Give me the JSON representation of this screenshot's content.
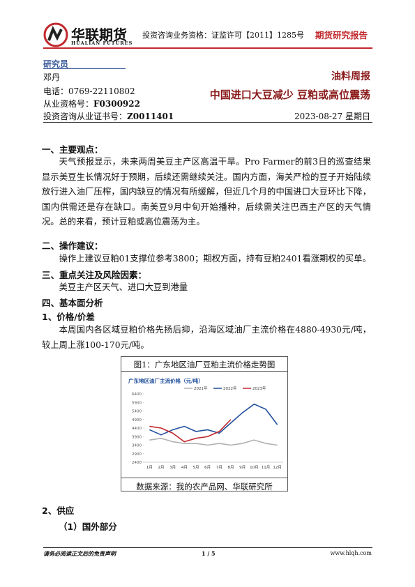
{
  "header": {
    "logo_cn": "华联期货",
    "logo_en": "HUALIAN FUTURES",
    "license": "投资咨询业务资格：证监许可【2011】1285号",
    "report_type": "期货研究报告"
  },
  "analyst": {
    "label": "研究员",
    "name": "邓丹",
    "phone": "电话：0769-22110802",
    "qual_label": "从业资格号：",
    "qual": "F0300922",
    "cert_label": "投资咨询从业证书号：",
    "cert": "Z0011401"
  },
  "title": "油料周报",
  "subtitle": "中国进口大豆减少 豆粕或高位震荡",
  "date": "2023-08-27 星期日",
  "sections": [
    {
      "heading": "一、主要观点：",
      "text": "天气预报显示，未来两周美豆主产区高温干旱。Pro Farmer的前3日的巡查结果显示美豆生长情况好于预期，后续还需继续关注。国内方面，海关严检的豆子开始陆续放行进入油厂压榨，国内缺豆的情况有所缓解，但近几个月的中国进口大豆环比下降，国内供需还是存在缺口。南美豆9月中旬开始播种，后续需关注巴西主产区的天气情况。总的来看，预计豆粕或高位震荡为主。"
    },
    {
      "heading": "二、操作建议：",
      "text": "操作上建议豆粕01支撑位参考3800；期权方面，持有豆粕2401看涨期权的买单。"
    },
    {
      "heading": "三、重点关注及风险因素：",
      "text": "美豆主产区天气、进口大豆到港量"
    },
    {
      "heading": "四、基本面分析"
    },
    {
      "heading": "1、价格/价差",
      "text": "本周国内各区域豆粕价格先扬后抑，沿海区域油厂主流价格在4880-4930元/吨，较上周上涨100-170元/吨。"
    }
  ],
  "figure": {
    "caption": "图1：广东地区油厂豆粕主流价格走势图",
    "source": "数据来源：我的农产品网、华联研究所",
    "chart_data": {
      "type": "line",
      "title": "广东地区油厂主流价格（元/吨）",
      "categories": [
        "1月",
        "2月",
        "3月",
        "4月",
        "5月",
        "6月",
        "7月",
        "8月",
        "9月",
        "10月",
        "11月",
        "12月"
      ],
      "series": [
        {
          "name": "2021年",
          "color": "#b0b0b0",
          "values": [
            3700,
            3800,
            3600,
            3500,
            3500,
            3400,
            3500,
            3400,
            3500,
            3700,
            3500,
            3400
          ]
        },
        {
          "name": "2022年",
          "color": "#1f4e9c",
          "values": [
            4300,
            4000,
            4300,
            4500,
            4200,
            4300,
            4100,
            4700,
            5300,
            5800,
            5500,
            4600
          ]
        },
        {
          "name": "2023年",
          "color": "#c0282d",
          "values": [
            4500,
            4400,
            4100,
            3600,
            3800,
            3900,
            4200,
            4900,
            null,
            null,
            null,
            null
          ]
        }
      ],
      "ylim": [
        2400,
        6400
      ],
      "yticks": [
        2400,
        2900,
        3400,
        3900,
        4400,
        4900,
        5400,
        5900,
        6400
      ]
    }
  },
  "supply": {
    "heading": "2、供应",
    "sub": "（1）国外部分"
  },
  "footer": {
    "disclaimer": "请务必阅读正文后的免责声明",
    "page": "1 / 5",
    "url": "www.hlqh.com"
  }
}
